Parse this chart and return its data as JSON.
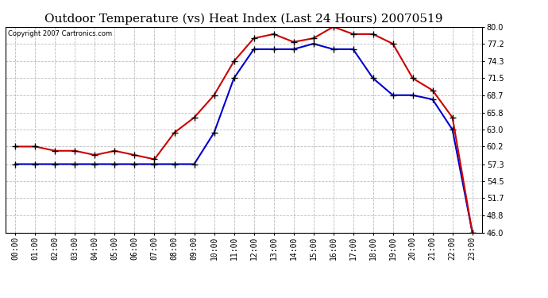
{
  "title": "Outdoor Temperature (vs) Heat Index (Last 24 Hours) 20070519",
  "copyright_text": "Copyright 2007 Cartronics.com",
  "hours": [
    "00:00",
    "01:00",
    "02:00",
    "03:00",
    "04:00",
    "05:00",
    "06:00",
    "07:00",
    "08:00",
    "09:00",
    "10:00",
    "11:00",
    "12:00",
    "13:00",
    "14:00",
    "15:00",
    "16:00",
    "17:00",
    "18:00",
    "19:00",
    "20:00",
    "21:00",
    "22:00",
    "23:00"
  ],
  "temp": [
    60.2,
    60.2,
    59.5,
    59.5,
    58.8,
    59.5,
    58.8,
    58.1,
    62.5,
    65.0,
    68.7,
    74.3,
    78.1,
    78.8,
    77.5,
    78.1,
    80.0,
    78.8,
    78.8,
    77.2,
    71.5,
    69.5,
    65.0,
    46.0
  ],
  "heat_index": [
    57.3,
    57.3,
    57.3,
    57.3,
    57.3,
    57.3,
    57.3,
    57.3,
    57.3,
    57.3,
    62.5,
    71.5,
    76.3,
    76.3,
    76.3,
    77.2,
    76.3,
    76.3,
    71.5,
    68.7,
    68.7,
    68.0,
    63.0,
    46.0
  ],
  "temp_color": "#cc0000",
  "heat_color": "#0000cc",
  "ylim": [
    46.0,
    80.0
  ],
  "yticks": [
    46.0,
    48.8,
    51.7,
    54.5,
    57.3,
    60.2,
    63.0,
    65.8,
    68.7,
    71.5,
    74.3,
    77.2,
    80.0
  ],
  "bg_color": "#ffffff",
  "grid_color": "#bbbbbb",
  "title_fontsize": 11,
  "copyright_fontsize": 6,
  "tick_fontsize": 7,
  "marker_size": 4
}
